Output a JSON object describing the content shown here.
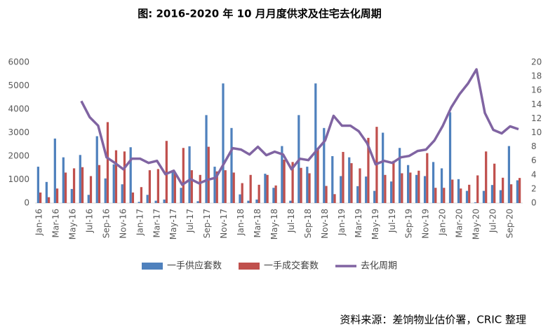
{
  "chart_data": {
    "type": "bar-line",
    "title": "图: 2016-2020 年 10 月月度供求及住宅去化周期",
    "source": "资料来源：差饷物业估价署，CRIC 整理",
    "categories": [
      "Jan-16",
      null,
      "Mar-16",
      null,
      "May-16",
      null,
      "Jul-16",
      null,
      "Sep-16",
      null,
      "Nov-16",
      null,
      "Jan-17",
      null,
      "Mar-17",
      null,
      "May-17",
      null,
      "Jul-17",
      null,
      "Sep-17",
      null,
      "Nov-17",
      null,
      "Jan-18",
      null,
      "Mar-18",
      null,
      "May-18",
      null,
      "Jul-18",
      null,
      "Sep-18",
      null,
      "Nov-18",
      null,
      "Jan-19",
      null,
      "Mar-19",
      null,
      "May-19",
      null,
      "Jul-19",
      null,
      "Sep-19",
      null,
      "Nov-19",
      null,
      "Jan-20",
      null,
      "Mar-20",
      null,
      "May-20",
      null,
      "Jul-20",
      null,
      "Sep-20",
      null
    ],
    "ylim": [
      0,
      6000
    ],
    "yticks": [
      0,
      1000,
      2000,
      3000,
      4000,
      5000,
      6000
    ],
    "y2lim": [
      0,
      20
    ],
    "y2ticks": [
      0,
      2,
      4,
      6,
      8,
      10,
      12,
      14,
      16,
      18,
      20
    ],
    "series": [
      {
        "name": "一手供应套数",
        "color": "#4f81bd",
        "type": "bar",
        "values": [
          1550,
          900,
          2750,
          1950,
          600,
          2050,
          350,
          2850,
          1050,
          1650,
          800,
          2380,
          50,
          350,
          100,
          150,
          1350,
          650,
          2420,
          80,
          3750,
          1550,
          5100,
          3200,
          370,
          100,
          150,
          1250,
          650,
          2430,
          100,
          3750,
          1550,
          5100,
          3200,
          2000,
          1150,
          1950,
          720,
          1130,
          520,
          3000,
          920,
          2350,
          1620,
          1200,
          1150,
          1750,
          1480,
          3870,
          1020,
          520,
          30,
          520,
          770,
          550,
          2430,
          970
        ]
      },
      {
        "name": "一手成交套数",
        "color": "#c0504d",
        "type": "bar",
        "values": [
          450,
          250,
          620,
          1300,
          1480,
          1530,
          1150,
          1620,
          3450,
          2250,
          2200,
          450,
          680,
          1400,
          1450,
          2650,
          1300,
          2350,
          1400,
          1200,
          2400,
          1350,
          1400,
          1300,
          850,
          1200,
          780,
          1200,
          750,
          1850,
          1750,
          1500,
          1270,
          2350,
          730,
          380,
          2180,
          1700,
          1480,
          2780,
          3250,
          1200,
          1800,
          1270,
          1300,
          1380,
          2130,
          650,
          650,
          1000,
          620,
          780,
          1180,
          2200,
          1680,
          1080,
          800,
          1070
        ]
      },
      {
        "name": "去化周期",
        "color": "#8064a2",
        "type": "line",
        "axis": "y2",
        "values": [
          null,
          null,
          null,
          null,
          null,
          14.5,
          12.2,
          11,
          6.5,
          5.7,
          4.8,
          6.3,
          6.3,
          5.7,
          6,
          4.1,
          4.6,
          2.6,
          3.4,
          2.8,
          3.3,
          3.6,
          5.7,
          7.8,
          7.6,
          6.9,
          8,
          6.8,
          7.3,
          6.9,
          4.8,
          6.3,
          6.1,
          7.5,
          8.9,
          12.4,
          11,
          11,
          10.2,
          8.5,
          5.5,
          6,
          5.7,
          6.5,
          6.7,
          7.4,
          7.6,
          8.9,
          11,
          13.6,
          15.5,
          17,
          19,
          12.8,
          10.4,
          9.9,
          10.9,
          10.5
        ]
      }
    ]
  }
}
